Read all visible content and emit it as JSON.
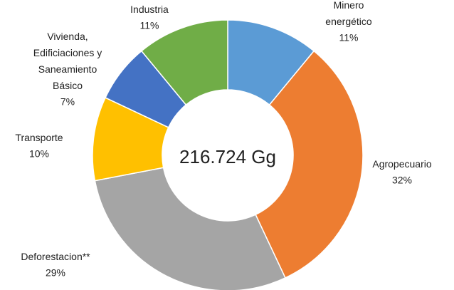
{
  "chart_data": {
    "type": "donut",
    "center_label": "216.724 Gg",
    "categories": [
      "Minero\nenergético",
      "Agropecuario",
      "Deforestacion**",
      "Transporte",
      "Vivienda,\nEdificiaciones y\nSaneamiento\nBásico",
      "Industria"
    ],
    "values": [
      11,
      32,
      29,
      10,
      7,
      11
    ],
    "value_labels": [
      "11%",
      "32%",
      "29%",
      "10%",
      "7%",
      "11%"
    ],
    "colors": [
      "#5b9bd5",
      "#ed7d31",
      "#a5a5a5",
      "#ffc000",
      "#4472c4",
      "#70ad47"
    ]
  }
}
